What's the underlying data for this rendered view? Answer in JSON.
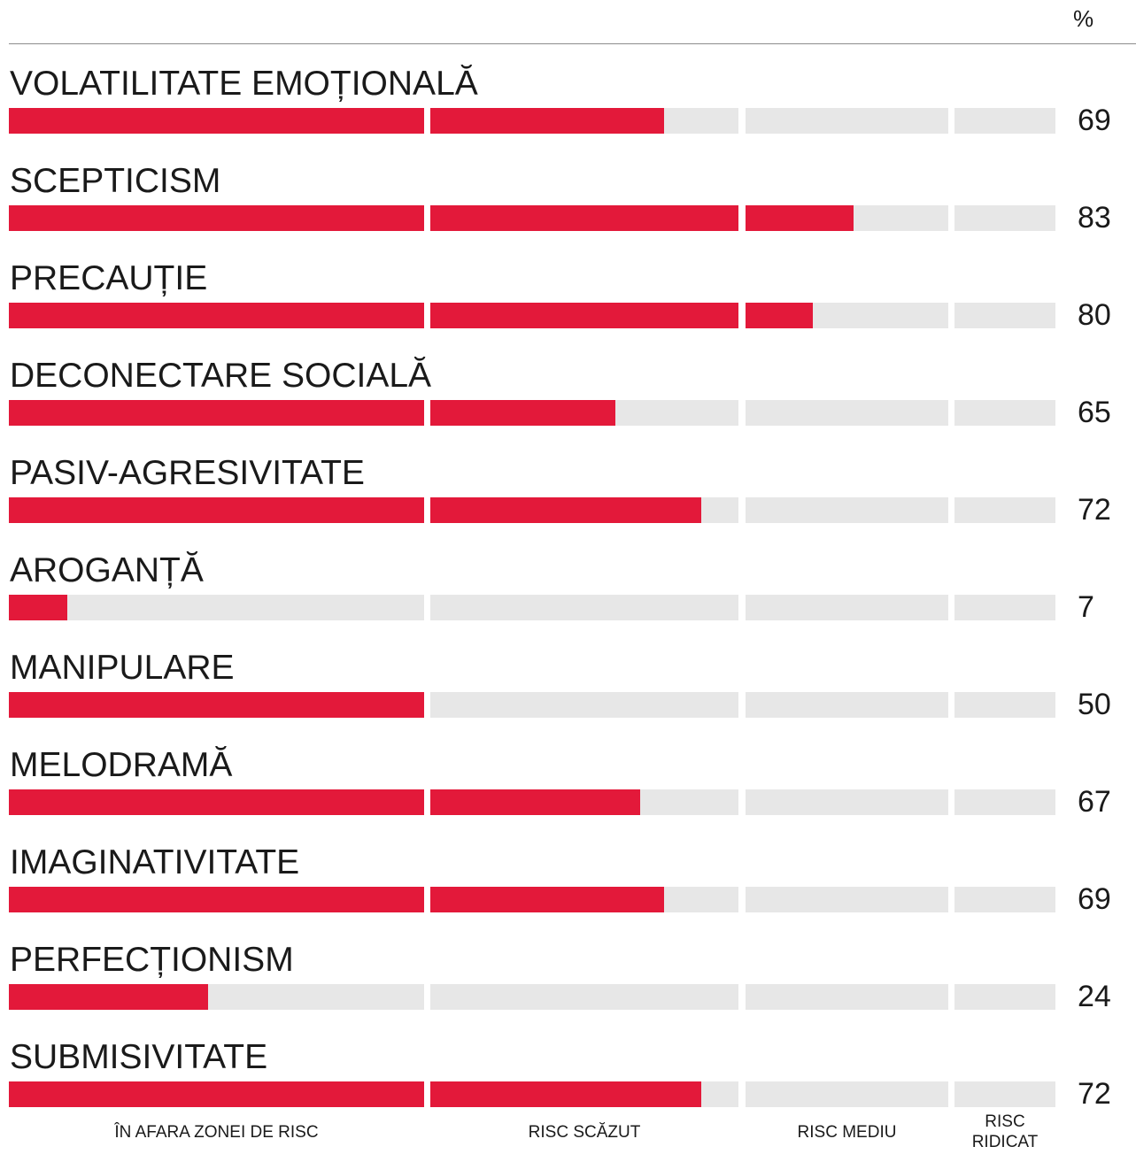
{
  "unit_label": "%",
  "chart_data": {
    "type": "bar",
    "orientation": "horizontal",
    "segments": [
      {
        "label": "ÎN AFARA ZONEI DE RISC",
        "from": 0,
        "to": 50
      },
      {
        "label": "RISC SCĂZUT",
        "from": 50,
        "to": 75
      },
      {
        "label": "RISC MEDIU",
        "from": 75,
        "to": 90
      },
      {
        "label": "RISC RIDICAT",
        "from": 90,
        "to": 100
      }
    ],
    "categories": [
      "VOLATILITATE EMOȚIONALĂ",
      "SCEPTICISM",
      "PRECAUȚIE",
      "DECONECTARE SOCIALĂ",
      "PASIV-AGRESIVITATE",
      "AROGANȚĂ",
      "MANIPULARE",
      "MELODRAMĂ",
      "IMAGINATIVITATE",
      "PERFECȚIONISM",
      "SUBMISIVITATE"
    ],
    "values": [
      69,
      83,
      80,
      65,
      72,
      7,
      50,
      67,
      69,
      24,
      72
    ],
    "xlim": [
      0,
      100
    ],
    "colors": {
      "fill": "#e3193a",
      "track": "#e7e7e7"
    }
  }
}
